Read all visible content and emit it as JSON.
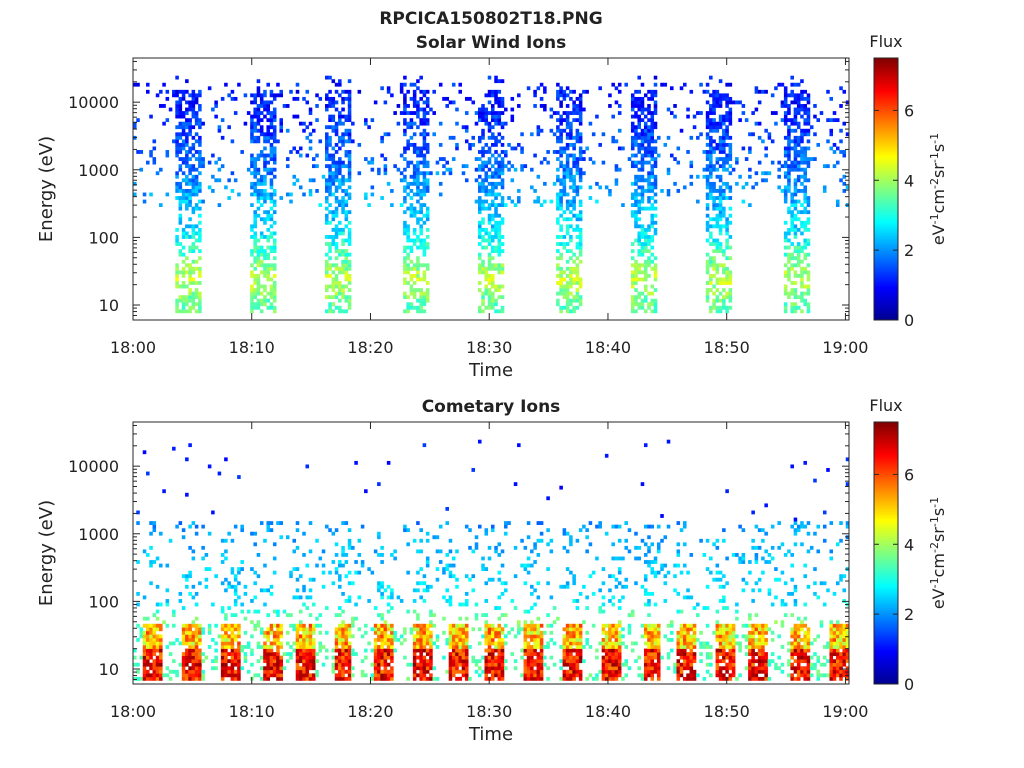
{
  "figure": {
    "filename": "RPCICA150802T18.PNG"
  },
  "colormap": [
    "#00008f",
    "#0000ff",
    "#0080ff",
    "#00ffff",
    "#80ff80",
    "#ffff00",
    "#ff8000",
    "#ff0000",
    "#800000"
  ],
  "chart_data": [
    {
      "type": "heatmap",
      "title": "Solar Wind Ions",
      "xlabel": "Time",
      "ylabel": "Energy (eV)",
      "x_ticks": [
        "18:00",
        "18:10",
        "18:20",
        "18:30",
        "18:40",
        "18:50",
        "19:00"
      ],
      "xlim_minutes": [
        0,
        60.3
      ],
      "y_scale": "log",
      "y_ticks": [
        10,
        100,
        1000,
        10000
      ],
      "y_tick_labels": [
        "10",
        "100",
        "1000",
        "10000"
      ],
      "ylim": [
        6,
        45000
      ],
      "colorbar": {
        "title": "Flux",
        "label_base": "eV",
        "label_units": [
          "-1",
          "cm",
          "-2",
          "sr",
          "-1",
          "s",
          "-1"
        ],
        "range": [
          0,
          7.5
        ],
        "ticks": [
          0,
          2,
          4,
          6
        ]
      },
      "bursts_minutes": [
        4.6,
        11.0,
        17.4,
        23.8,
        30.2,
        36.6,
        43.0,
        49.4,
        55.8
      ],
      "burst_width_minutes": 2.2,
      "flux_profile": [
        {
          "energy_eV": 10,
          "flux": 3.5
        },
        {
          "energy_eV": 25,
          "flux": 4.2
        },
        {
          "energy_eV": 100,
          "flux": 2.8
        },
        {
          "energy_eV": 1000,
          "flux": 1.8
        },
        {
          "energy_eV": 10000,
          "flux": 1.1
        }
      ]
    },
    {
      "type": "heatmap",
      "title": "Cometary Ions",
      "xlabel": "Time",
      "ylabel": "Energy (eV)",
      "x_ticks": [
        "18:00",
        "18:10",
        "18:20",
        "18:30",
        "18:40",
        "18:50",
        "19:00"
      ],
      "xlim_minutes": [
        0,
        60.3
      ],
      "y_scale": "log",
      "y_ticks": [
        10,
        100,
        1000,
        10000
      ],
      "y_tick_labels": [
        "10",
        "100",
        "1000",
        "10000"
      ],
      "ylim": [
        6,
        45000
      ],
      "colorbar": {
        "title": "Flux",
        "label_base": "eV",
        "label_units": [
          "-1",
          "cm",
          "-2",
          "sr",
          "-1",
          "s",
          "-1"
        ],
        "range": [
          0,
          7.5
        ],
        "ticks": [
          0,
          2,
          4,
          6
        ]
      },
      "bursts_minutes": [
        1.6,
        4.9,
        8.3,
        11.7,
        14.5,
        17.7,
        21.2,
        24.4,
        27.5,
        30.4,
        33.7,
        36.9,
        40.3,
        43.7,
        46.7,
        49.8,
        52.7,
        56.2,
        59.4
      ],
      "burst_width_minutes": 1.6,
      "flux_profile": [
        {
          "energy_eV": 12,
          "flux": 6.2
        },
        {
          "energy_eV": 25,
          "flux": 5.0
        },
        {
          "energy_eV": 100,
          "flux": 2.6
        },
        {
          "energy_eV": 1000,
          "flux": 2.2
        },
        {
          "energy_eV": 10000,
          "flux": 1.0
        }
      ]
    }
  ]
}
